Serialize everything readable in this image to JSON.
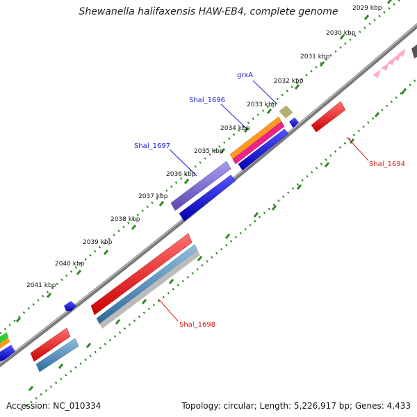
{
  "title": "Shewanella halifaxensis HAW-EB4, complete genome",
  "footer": {
    "accession": "Accession: NC_010334",
    "summary": "Topology: circular; Length: 5,226,917 bp; Genes: 4,433"
  },
  "ticks": [
    {
      "label": "2029 kbp"
    },
    {
      "label": "2030 kbp"
    },
    {
      "label": "2031 kbp"
    },
    {
      "label": "2032 kbp"
    },
    {
      "label": "2033 kbp"
    },
    {
      "label": "2034 kbp"
    },
    {
      "label": "2035 kbp"
    },
    {
      "label": "2036 kbp"
    },
    {
      "label": "2037 kbp"
    },
    {
      "label": "2038 kbp"
    },
    {
      "label": "2039 kbp"
    },
    {
      "label": "2040 kbp"
    },
    {
      "label": "2041 kbp"
    }
  ],
  "gene_labels": [
    {
      "name": "grxA",
      "color": "#1a1ad6"
    },
    {
      "name": "Shal_1696",
      "color": "#1a1ad6"
    },
    {
      "name": "Shal_1697",
      "color": "#1a1ad6"
    },
    {
      "name": "Shal_1694",
      "color": "#dd1111"
    },
    {
      "name": "Shal_1698",
      "color": "#dd1111"
    }
  ],
  "colors": {
    "backbone": "#8a8a8a",
    "tick_green": "#2e8b22",
    "gene_red": "#ff1a1a",
    "gene_blue": "#1010ee",
    "gene_steel": "#4a86b8",
    "gene_purple": "#7a66cc",
    "gene_orange": "#ff9922",
    "gene_magenta": "#ee2288",
    "gene_olive": "#b8b070",
    "gene_grey": "#bbbbbb",
    "gene_pink": "#ffaacc",
    "gene_green": "#33cc33"
  }
}
